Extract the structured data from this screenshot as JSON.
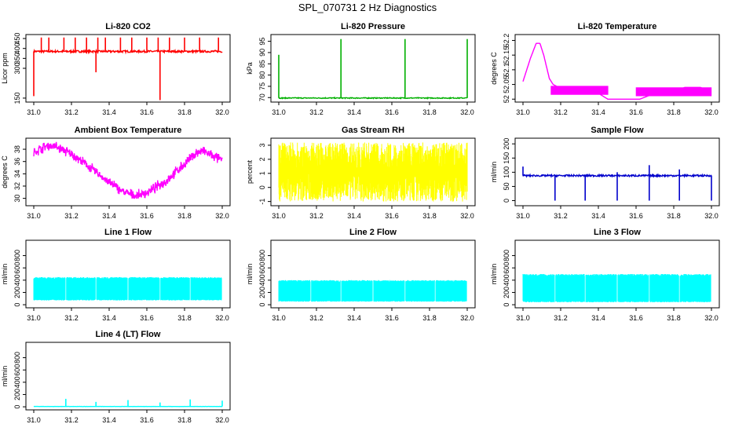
{
  "page_title": "SPL_070731  2 Hz Diagnostics",
  "chart_data": [
    {
      "id": "co2",
      "type": "line",
      "title": "Li-820 CO2",
      "ylabel": "Licor ppm",
      "xlim": [
        31.0,
        32.0
      ],
      "ylim": [
        130,
        470
      ],
      "yticks": [
        150,
        300,
        350,
        400,
        450
      ],
      "xticks": [
        "31.0",
        "31.2",
        "31.4",
        "31.6",
        "31.8",
        "32.0"
      ],
      "color": "#ff0000",
      "series": [
        {
          "name": "CO2",
          "baseline": 385,
          "noise": 5,
          "spikes_up": [
            [
              31.04,
              455
            ],
            [
              31.08,
              455
            ],
            [
              31.16,
              455
            ],
            [
              31.22,
              455
            ],
            [
              31.28,
              455
            ],
            [
              31.34,
              455
            ],
            [
              31.38,
              455
            ],
            [
              31.46,
              455
            ],
            [
              31.52,
              455
            ],
            [
              31.6,
              455
            ],
            [
              31.66,
              455
            ],
            [
              31.72,
              455
            ],
            [
              31.8,
              455
            ],
            [
              31.88,
              455
            ],
            [
              31.98,
              455
            ]
          ],
          "spikes_down": [
            [
              31.0,
              160
            ],
            [
              31.33,
              280
            ],
            [
              31.67,
              140
            ]
          ]
        }
      ]
    },
    {
      "id": "pressure",
      "type": "line",
      "title": "Li-820 Pressure",
      "ylabel": "kPa",
      "xlim": [
        31.0,
        32.0
      ],
      "ylim": [
        68,
        98
      ],
      "yticks": [
        70,
        75,
        80,
        85,
        90,
        95
      ],
      "xticks": [
        "31.0",
        "31.2",
        "31.4",
        "31.6",
        "31.8",
        "32.0"
      ],
      "color": "#00b000",
      "series": [
        {
          "name": "Pressure",
          "baseline": 69.8,
          "noise": 0.2,
          "spikes_up": [
            [
              31.0,
              89
            ],
            [
              31.33,
              96
            ],
            [
              31.67,
              96
            ],
            [
              32.0,
              96
            ]
          ],
          "spikes_down": []
        }
      ]
    },
    {
      "id": "temp820",
      "type": "line",
      "title": "Li-820 Temperature",
      "ylabel": "degrees C",
      "xlim": [
        31.0,
        32.0
      ],
      "ylim": [
        51.99,
        52.22
      ],
      "yticks": [
        52.0,
        52.05,
        52.1,
        52.15,
        52.2
      ],
      "xticks": [
        "31.0",
        "31.2",
        "31.4",
        "31.6",
        "31.8",
        "32.0"
      ],
      "color": "#ff00ff",
      "series": [
        {
          "name": "Temperature",
          "points": [
            [
              31.0,
              52.06
            ],
            [
              31.04,
              52.14
            ],
            [
              31.07,
              52.19
            ],
            [
              31.09,
              52.19
            ],
            [
              31.11,
              52.15
            ],
            [
              31.14,
              52.07
            ],
            [
              31.16,
              52.05
            ],
            [
              31.19,
              52.04
            ],
            [
              31.25,
              52.03
            ],
            [
              31.32,
              52.02
            ],
            [
              31.4,
              52.02
            ],
            [
              31.45,
              52.0
            ],
            [
              31.55,
              52.0
            ],
            [
              31.62,
              52.0
            ],
            [
              31.7,
              52.02
            ],
            [
              31.8,
              52.03
            ],
            [
              31.86,
              52.04
            ],
            [
              31.94,
              52.04
            ],
            [
              32.0,
              52.03
            ]
          ]
        }
      ]
    },
    {
      "id": "boxtemp",
      "type": "line",
      "title": "Ambient Box Temperature",
      "ylabel": "degrees C",
      "xlim": [
        31.0,
        32.0
      ],
      "ylim": [
        28.8,
        39.8
      ],
      "yticks": [
        30,
        32,
        34,
        36,
        38
      ],
      "xticks": [
        "31.0",
        "31.2",
        "31.4",
        "31.6",
        "31.8",
        "32.0"
      ],
      "color": "#ff00ff",
      "series": [
        {
          "name": "Box Temperature",
          "points": [
            [
              31.0,
              37.5
            ],
            [
              31.05,
              38.3
            ],
            [
              31.08,
              38.6
            ],
            [
              31.12,
              38.4
            ],
            [
              31.2,
              37.2
            ],
            [
              31.3,
              35.0
            ],
            [
              31.4,
              32.6
            ],
            [
              31.48,
              31.0
            ],
            [
              31.54,
              30.4
            ],
            [
              31.6,
              30.9
            ],
            [
              31.7,
              32.8
            ],
            [
              31.8,
              35.6
            ],
            [
              31.86,
              37.4
            ],
            [
              31.9,
              37.7
            ],
            [
              31.95,
              36.9
            ],
            [
              32.0,
              36.2
            ]
          ],
          "noise": 0.5
        }
      ]
    },
    {
      "id": "rh",
      "type": "line",
      "title": "Gas Stream RH",
      "ylabel": "percent",
      "xlim": [
        31.0,
        32.0
      ],
      "ylim": [
        -1.3,
        3.5
      ],
      "yticks": [
        -1,
        0,
        1,
        2,
        3
      ],
      "xticks": [
        "31.0",
        "31.2",
        "31.4",
        "31.6",
        "31.8",
        "32.0"
      ],
      "color": "#ffff00",
      "series": [
        {
          "name": "RH",
          "low": -1.0,
          "high": 3.2
        }
      ]
    },
    {
      "id": "sampleflow",
      "type": "line",
      "title": "Sample Flow",
      "ylabel": "ml/min",
      "xlim": [
        31.0,
        32.0
      ],
      "ylim": [
        -18,
        220
      ],
      "yticks": [
        0,
        50,
        100,
        150,
        200
      ],
      "xticks": [
        "31.0",
        "31.2",
        "31.4",
        "31.6",
        "31.8",
        "32.0"
      ],
      "color": "#0000cc",
      "series": [
        {
          "name": "Sample Flow",
          "baseline": 88,
          "noise": 3,
          "spikes_up": [
            [
              31.0,
              120
            ],
            [
              31.5,
              100
            ],
            [
              31.67,
              125
            ],
            [
              31.83,
              110
            ]
          ],
          "spikes_down": [
            [
              31.17,
              0
            ],
            [
              31.33,
              0
            ],
            [
              31.5,
              0
            ],
            [
              31.67,
              0
            ],
            [
              31.83,
              0
            ],
            [
              32.0,
              0
            ]
          ]
        }
      ]
    },
    {
      "id": "line1",
      "type": "line",
      "title": "Line 1 Flow",
      "ylabel": "ml/min",
      "xlim": [
        31.0,
        32.0
      ],
      "ylim": [
        -50,
        1050
      ],
      "yticks": [
        0,
        200,
        400,
        600,
        800
      ],
      "xticks": [
        "31.0",
        "31.2",
        "31.4",
        "31.6",
        "31.8",
        "32.0"
      ],
      "color": "#00ffff",
      "series": [
        {
          "name": "Line 1",
          "low": 70,
          "high": 450,
          "gaps": [
            31.17,
            31.33,
            31.5,
            31.67,
            31.83,
            32.0
          ]
        }
      ]
    },
    {
      "id": "line2",
      "type": "line",
      "title": "Line 2 Flow",
      "ylabel": "ml/min",
      "xlim": [
        31.0,
        32.0
      ],
      "ylim": [
        -50,
        1050
      ],
      "yticks": [
        0,
        200,
        400,
        600,
        800
      ],
      "xticks": [
        "31.0",
        "31.2",
        "31.4",
        "31.6",
        "31.8",
        "32.0"
      ],
      "color": "#00ffff",
      "series": [
        {
          "name": "Line 2",
          "low": 50,
          "high": 400,
          "gaps": [
            31.17,
            31.33,
            31.5,
            31.67,
            31.83,
            32.0
          ]
        }
      ]
    },
    {
      "id": "line3",
      "type": "line",
      "title": "Line 3 Flow",
      "ylabel": "ml/min",
      "xlim": [
        31.0,
        32.0
      ],
      "ylim": [
        -50,
        1050
      ],
      "yticks": [
        0,
        200,
        400,
        600,
        800
      ],
      "xticks": [
        "31.0",
        "31.2",
        "31.4",
        "31.6",
        "31.8",
        "32.0"
      ],
      "color": "#00ffff",
      "series": [
        {
          "name": "Line 3",
          "low": 40,
          "high": 500,
          "gaps": [
            31.17,
            31.33,
            31.5,
            31.67,
            31.83,
            32.0
          ]
        }
      ]
    },
    {
      "id": "line4",
      "type": "line",
      "title": "Line 4 (LT) Flow",
      "ylabel": "ml/min",
      "xlim": [
        31.0,
        32.0
      ],
      "ylim": [
        -50,
        1050
      ],
      "yticks": [
        0,
        200,
        400,
        600,
        800
      ],
      "xticks": [
        "31.0",
        "31.2",
        "31.4",
        "31.6",
        "31.8",
        "32.0"
      ],
      "color": "#00ffff",
      "series": [
        {
          "name": "Line 4",
          "baseline": 5,
          "noise": 1,
          "spikes_up": [
            [
              31.17,
              130
            ],
            [
              31.33,
              80
            ],
            [
              31.5,
              110
            ],
            [
              31.67,
              70
            ],
            [
              31.83,
              120
            ],
            [
              32.0,
              100
            ]
          ],
          "spikes_down": []
        }
      ]
    }
  ]
}
